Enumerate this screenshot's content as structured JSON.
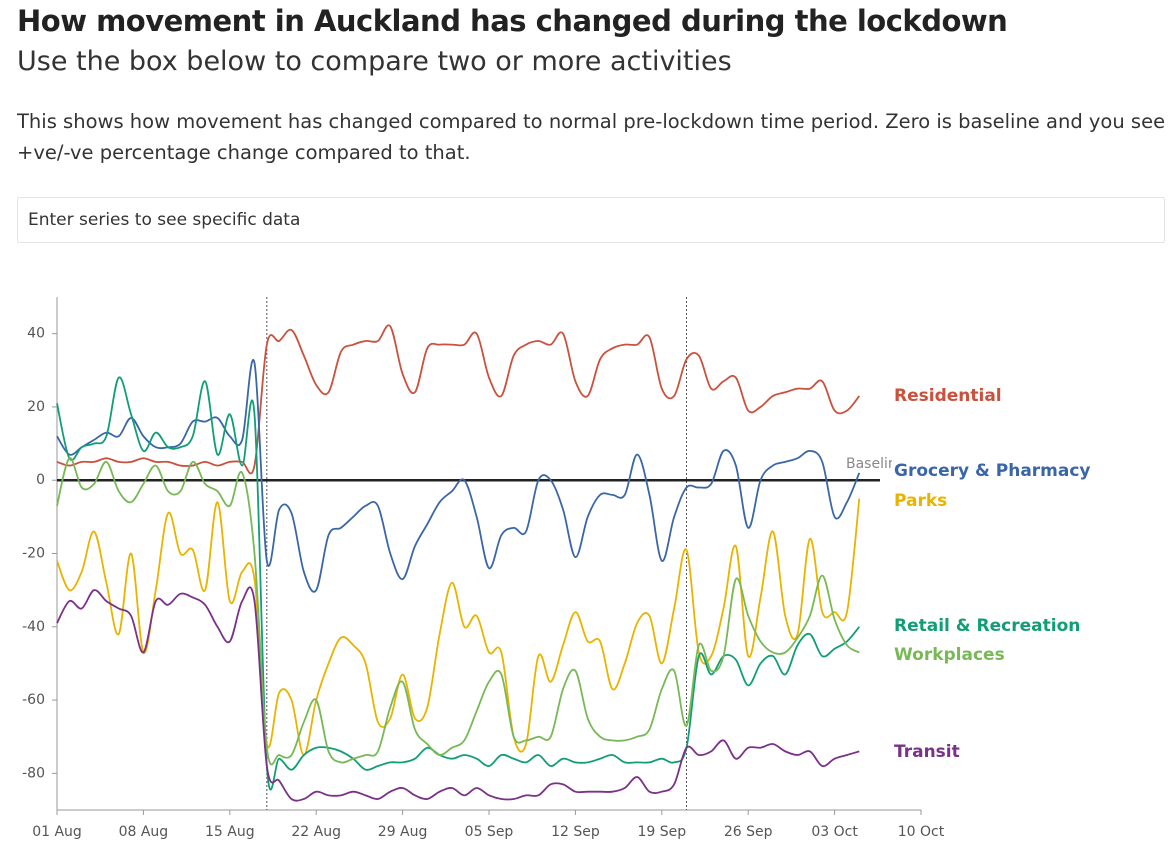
{
  "header": {
    "title": "How movement in Auckland has changed during the lockdown",
    "subtitle": "Use the box below to compare two or more activities",
    "description": "This shows how movement has changed compared to normal pre-lockdown time period. Zero is baseline and you see +ve/-ve percentage change compared to that."
  },
  "search": {
    "placeholder": "Enter series to see specific data"
  },
  "chart_data": {
    "type": "line",
    "xlim": [
      "01 Aug",
      "10 Oct"
    ],
    "xticks": [
      "01 Aug",
      "08 Aug",
      "15 Aug",
      "22 Aug",
      "29 Aug",
      "05 Sep",
      "12 Sep",
      "19 Sep",
      "26 Sep",
      "03 Oct",
      "10 Oct"
    ],
    "ylim": [
      -90,
      50
    ],
    "yticks": [
      -80,
      -60,
      -40,
      -20,
      0,
      20,
      40
    ],
    "reference_lines_x": [
      "18 Aug",
      "21 Sep"
    ],
    "baseline": {
      "value": 0,
      "label": "Baseline"
    },
    "x": [
      "01 Aug",
      "02 Aug",
      "03 Aug",
      "04 Aug",
      "05 Aug",
      "06 Aug",
      "07 Aug",
      "08 Aug",
      "09 Aug",
      "10 Aug",
      "11 Aug",
      "12 Aug",
      "13 Aug",
      "14 Aug",
      "15 Aug",
      "16 Aug",
      "17 Aug",
      "18 Aug",
      "19 Aug",
      "20 Aug",
      "21 Aug",
      "22 Aug",
      "23 Aug",
      "24 Aug",
      "25 Aug",
      "26 Aug",
      "27 Aug",
      "28 Aug",
      "29 Aug",
      "30 Aug",
      "31 Aug",
      "01 Sep",
      "02 Sep",
      "03 Sep",
      "04 Sep",
      "05 Sep",
      "06 Sep",
      "07 Sep",
      "08 Sep",
      "09 Sep",
      "10 Sep",
      "11 Sep",
      "12 Sep",
      "13 Sep",
      "14 Sep",
      "15 Sep",
      "16 Sep",
      "17 Sep",
      "18 Sep",
      "19 Sep",
      "20 Sep",
      "21 Sep",
      "22 Sep",
      "23 Sep",
      "24 Sep",
      "25 Sep",
      "26 Sep",
      "27 Sep",
      "28 Sep",
      "29 Sep",
      "30 Sep",
      "01 Oct",
      "02 Oct",
      "03 Oct",
      "04 Oct",
      "05 Oct"
    ],
    "series": [
      {
        "name": "Residential",
        "color": "#c9513e",
        "values": [
          5,
          4,
          5,
          5,
          6,
          5,
          5,
          6,
          5,
          5,
          4,
          4,
          5,
          4,
          5,
          5,
          4,
          37,
          38,
          41,
          34,
          26,
          24,
          35,
          37,
          38,
          38,
          42,
          29,
          24,
          36,
          37,
          37,
          37,
          40,
          28,
          23,
          34,
          37,
          38,
          37,
          40,
          27,
          23,
          33,
          36,
          37,
          37,
          39,
          25,
          23,
          33,
          34,
          25,
          27,
          28,
          19,
          20,
          23,
          24,
          25,
          25,
          27,
          19,
          19,
          23
        ]
      },
      {
        "name": "Grocery & Pharmacy",
        "color": "#3a66a8",
        "values": [
          12,
          7,
          9,
          11,
          13,
          12,
          17,
          12,
          9,
          9,
          10,
          16,
          16,
          17,
          12,
          11,
          32,
          -22,
          -8,
          -9,
          -25,
          -30,
          -15,
          -13,
          -10,
          -7,
          -7,
          -20,
          -27,
          -18,
          -12,
          -6,
          -3,
          0,
          -10,
          -24,
          -15,
          -13,
          -14,
          0,
          0,
          -8,
          -21,
          -10,
          -4,
          -4,
          -4,
          7,
          -4,
          -22,
          -10,
          -2,
          -2,
          -1,
          8,
          4,
          -13,
          0,
          4,
          5,
          6,
          8,
          5,
          -10,
          -6,
          2
        ]
      },
      {
        "name": "Parks",
        "color": "#e8b400",
        "values": [
          -22,
          -30,
          -25,
          -14,
          -28,
          -42,
          -20,
          -47,
          -30,
          -9,
          -20,
          -19,
          -30,
          -6,
          -33,
          -25,
          -27,
          -72,
          -58,
          -60,
          -75,
          -60,
          -50,
          -43,
          -45,
          -50,
          -66,
          -65,
          -53,
          -65,
          -62,
          -42,
          -28,
          -40,
          -37,
          -47,
          -47,
          -70,
          -72,
          -48,
          -55,
          -45,
          -36,
          -44,
          -44,
          -57,
          -50,
          -39,
          -37,
          -50,
          -35,
          -19,
          -47,
          -48,
          -35,
          -18,
          -48,
          -32,
          -14,
          -37,
          -42,
          -16,
          -36,
          -36,
          -36,
          -5
        ]
      },
      {
        "name": "Retail & Recreation",
        "color": "#119e76",
        "values": [
          21,
          6,
          9,
          10,
          12,
          28,
          18,
          8,
          13,
          9,
          9,
          12,
          27,
          7,
          18,
          4,
          18,
          -78,
          -76,
          -79,
          -75,
          -73,
          -73,
          -74,
          -76,
          -79,
          -78,
          -77,
          -77,
          -76,
          -73,
          -75,
          -76,
          -75,
          -76,
          -78,
          -75,
          -76,
          -77,
          -75,
          -78,
          -76,
          -77,
          -77,
          -76,
          -75,
          -77,
          -77,
          -77,
          -76,
          -77,
          -73,
          -48,
          -53,
          -48,
          -49,
          -56,
          -50,
          -48,
          -53,
          -45,
          -42,
          -48,
          -46,
          -44,
          -40
        ]
      },
      {
        "name": "Workplaces",
        "color": "#78b856",
        "values": [
          -7,
          6,
          -2,
          -1,
          5,
          -3,
          -6,
          -1,
          4,
          -3,
          -3,
          5,
          -1,
          -3,
          -7,
          2,
          -20,
          -73,
          -75,
          -75,
          -66,
          -60,
          -74,
          -77,
          -76,
          -75,
          -74,
          -62,
          -55,
          -68,
          -72,
          -75,
          -73,
          -71,
          -63,
          -55,
          -53,
          -70,
          -71,
          -70,
          -70,
          -57,
          -52,
          -65,
          -70,
          -71,
          -71,
          -70,
          -68,
          -57,
          -52,
          -67,
          -45,
          -52,
          -48,
          -27,
          -37,
          -44,
          -47,
          -47,
          -43,
          -37,
          -26,
          -38,
          -45,
          -47
        ]
      },
      {
        "name": "Transit",
        "color": "#7a3188",
        "values": [
          -39,
          -33,
          -35,
          -30,
          -33,
          -35,
          -37,
          -47,
          -33,
          -34,
          -31,
          -32,
          -34,
          -40,
          -44,
          -33,
          -33,
          -78,
          -82,
          -87,
          -87,
          -85,
          -86,
          -86,
          -85,
          -86,
          -87,
          -85,
          -84,
          -86,
          -87,
          -85,
          -84,
          -86,
          -84,
          -86,
          -87,
          -87,
          -86,
          -86,
          -83,
          -83,
          -85,
          -85,
          -85,
          -85,
          -84,
          -81,
          -85,
          -85,
          -83,
          -73,
          -75,
          -74,
          -71,
          -76,
          -73,
          -73,
          -72,
          -74,
          -75,
          -74,
          -78,
          -76,
          -75,
          -74
        ]
      }
    ]
  }
}
